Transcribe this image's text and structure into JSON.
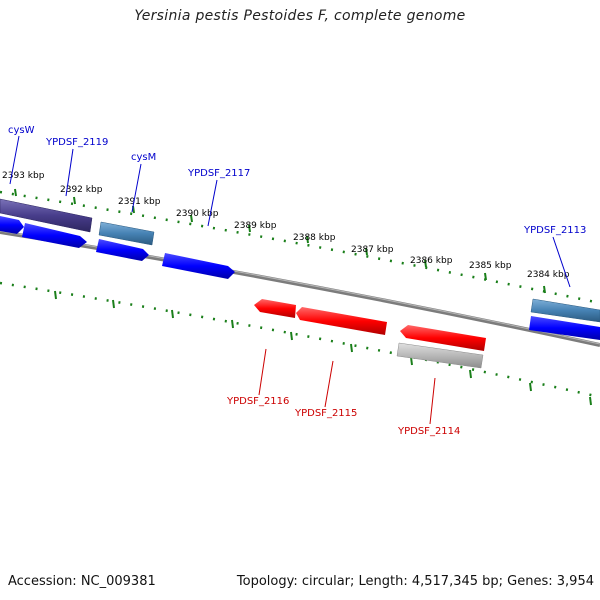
{
  "title": "Yersinia pestis Pestoides F, complete genome",
  "footer": {
    "accession": "Accession: NC_009381",
    "summary": "Topology: circular; Length: 4,517,345 bp; Genes: 3,954"
  },
  "colors": {
    "backbone": "#808080",
    "tick": "#1a7f1a",
    "forward_cds": "#0000ff",
    "forward_rna": "#4682b4",
    "forward_other": "#483d8b",
    "reverse_cds": "#ff0000",
    "reverse_other": "#b0b0b0",
    "label_forward": "#0000cc",
    "label_reverse": "#cc0000"
  },
  "ruler_labels": [
    "2393 kbp",
    "2392 kbp",
    "2391 kbp",
    "2390 kbp",
    "2389 kbp",
    "2388 kbp",
    "2387 kbp",
    "2386 kbp",
    "2385 kbp",
    "2384 kbp"
  ],
  "gene_labels": [
    {
      "text": "cysW",
      "strand": "forward"
    },
    {
      "text": "YPDSF_2119",
      "strand": "forward"
    },
    {
      "text": "cysM",
      "strand": "forward"
    },
    {
      "text": "YPDSF_2117",
      "strand": "forward"
    },
    {
      "text": "YPDSF_2113",
      "strand": "forward"
    },
    {
      "text": "YPDSF_2116",
      "strand": "reverse"
    },
    {
      "text": "YPDSF_2115",
      "strand": "reverse"
    },
    {
      "text": "YPDSF_2114",
      "strand": "reverse"
    }
  ]
}
